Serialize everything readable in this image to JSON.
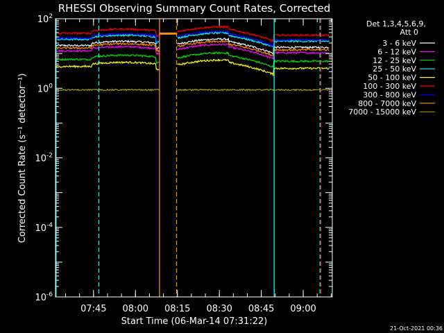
{
  "chart_data": {
    "type": "line",
    "title": "RHESSI Observing Summary Count Rates, Corrected",
    "xlabel": "Start Time (06-Mar-14 07:31:22)",
    "ylabel": "Corrected Count Rate (s⁻¹ detector⁻¹)",
    "yscale": "log",
    "ylim": [
      1e-06,
      100
    ],
    "xlim_minutes": [
      0,
      99
    ],
    "x_ticks": [
      {
        "label": "07:45",
        "t": 13.6
      },
      {
        "label": "08:00",
        "t": 28.6
      },
      {
        "label": "08:15",
        "t": 43.6
      },
      {
        "label": "08:30",
        "t": 58.6
      },
      {
        "label": "08:45",
        "t": 73.6
      },
      {
        "label": "09:00",
        "t": 88.6
      }
    ],
    "y_ticks": [
      {
        "base": "10",
        "exp": "2",
        "value": 100
      },
      {
        "base": "10",
        "exp": "0",
        "value": 1
      },
      {
        "base": "10",
        "exp": "-2",
        "value": 0.01
      },
      {
        "base": "10",
        "exp": "-4",
        "value": 0.0001
      },
      {
        "base": "10",
        "exp": "-6",
        "value": 1e-06
      }
    ],
    "legend_header": [
      "Det 1,3,4,5,6,9,",
      "Att 0"
    ],
    "legend_position": "top-right",
    "series": [
      {
        "name": "3 - 6 keV",
        "color": "#ffffff",
        "level": 20
      },
      {
        "name": "6 - 12 keV",
        "color": "#ff00ff",
        "level": 14
      },
      {
        "name": "12 - 25 keV",
        "color": "#00e000",
        "level": 8
      },
      {
        "name": "25 - 50 keV",
        "color": "#00ffff",
        "level": 30
      },
      {
        "name": "50 - 100 keV",
        "color": "#ffff00",
        "level": 5
      },
      {
        "name": "100 - 300 keV",
        "color": "#ff0000",
        "level": 45
      },
      {
        "name": "300 - 800 keV",
        "color": "#0000ff",
        "level": 33
      },
      {
        "name": "800 - 7000 keV",
        "color": "#ff8c00",
        "level": 17
      },
      {
        "name": "7000 - 15000 keV",
        "color": "#9a9a00",
        "level": 0.9
      }
    ],
    "vertical_markers": [
      {
        "t": 0.2,
        "color": "#00ffff",
        "style": "solid"
      },
      {
        "t": 15.5,
        "color": "#00ffff",
        "style": "dashed"
      },
      {
        "t": 37.2,
        "color": "#ff8c00",
        "style": "solid"
      },
      {
        "t": 43.3,
        "color": "#ff8c00",
        "style": "dashed"
      },
      {
        "t": 78.2,
        "color": "#00ffff",
        "style": "solid"
      },
      {
        "t": 94.6,
        "color": "#00ffff",
        "style": "dashed"
      },
      {
        "t": 94.9,
        "color": "#ff0000",
        "style": "dashed"
      }
    ],
    "gaps": [
      [
        37.2,
        43.3
      ]
    ]
  },
  "footer": {
    "timestamp": "21-Oct-2021 00:36"
  }
}
